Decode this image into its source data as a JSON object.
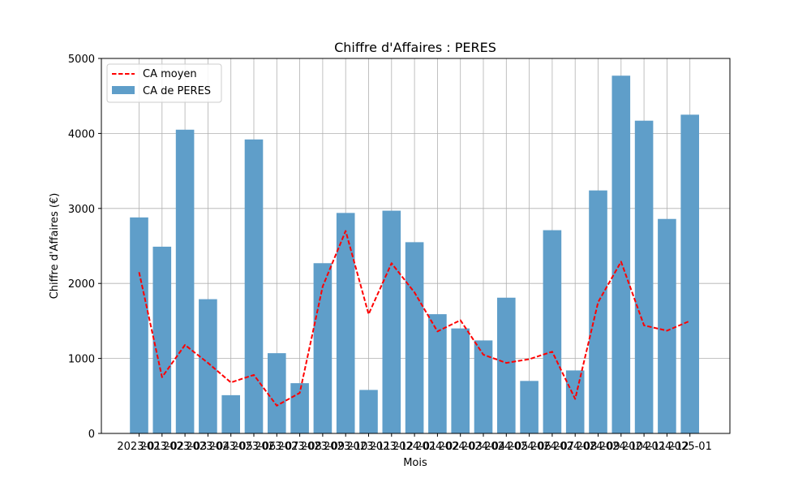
{
  "chart_data": {
    "type": "bar",
    "title": "Chiffre d'Affaires : PERES",
    "xlabel": "Mois",
    "ylabel": "Chiffre d'Affaires (€)",
    "ylim": [
      0,
      5000
    ],
    "yticks": [
      0,
      1000,
      2000,
      3000,
      4000,
      5000
    ],
    "grid": true,
    "legend_position": "top-left",
    "categories": [
      "2023-01",
      "2023-02",
      "2023-03",
      "2023-04",
      "2023-05",
      "2023-06",
      "2023-07",
      "2023-08",
      "2023-09",
      "2023-10",
      "2023-11",
      "2023-12",
      "2024-01",
      "2024-02",
      "2024-03",
      "2024-04",
      "2024-05",
      "2024-06",
      "2024-07",
      "2024-08",
      "2024-09",
      "2024-10",
      "2024-11",
      "2024-12",
      "2025-01"
    ],
    "series": [
      {
        "name": "CA de PERES",
        "kind": "bar",
        "color": "#5f9ec9",
        "values": [
          2880,
          2490,
          4050,
          1790,
          510,
          3920,
          1070,
          670,
          2270,
          2940,
          580,
          2970,
          2550,
          1590,
          1400,
          1240,
          1810,
          700,
          2710,
          840,
          3240,
          4770,
          4170,
          2860,
          4250
        ]
      },
      {
        "name": "CA moyen",
        "kind": "line",
        "color": "#ff0000",
        "style": "dashed",
        "values": [
          2150,
          750,
          1180,
          940,
          680,
          780,
          370,
          540,
          1960,
          2700,
          1590,
          2270,
          1880,
          1360,
          1510,
          1050,
          940,
          990,
          1090,
          460,
          1750,
          2290,
          1440,
          1370,
          1500
        ]
      }
    ]
  }
}
